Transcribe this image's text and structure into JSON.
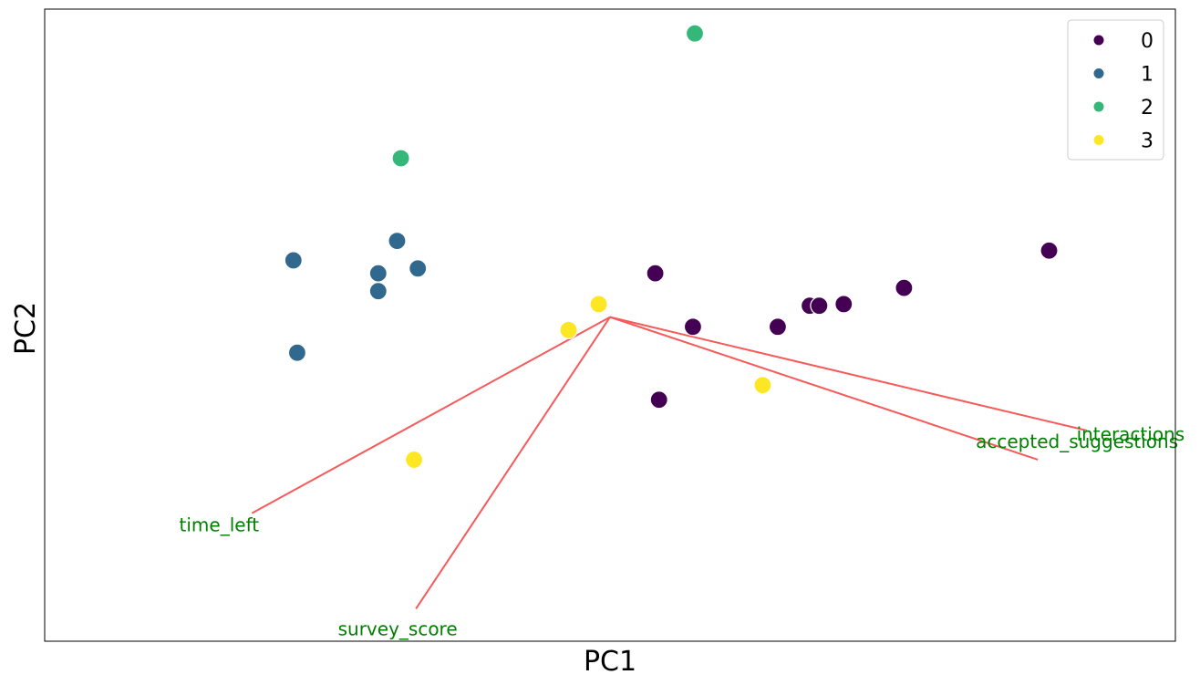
{
  "chart_data": {
    "type": "scatter",
    "xlabel": "PC1",
    "ylabel": "PC2",
    "xlim": [
      -3.0,
      3.0
    ],
    "ylim": [
      -2.0,
      1.9
    ],
    "legend_placement": "top-right",
    "grid": false,
    "series": [
      {
        "name": "0",
        "color": "#440154",
        "x": [
          0.24,
          0.44,
          0.89,
          1.06,
          1.11,
          1.24,
          1.56,
          2.33,
          0.26
        ],
        "y": [
          0.27,
          -0.06,
          -0.06,
          0.07,
          0.07,
          0.08,
          0.18,
          0.41,
          -0.51
        ]
      },
      {
        "name": "1",
        "color": "#31688e",
        "x": [
          -1.68,
          -1.23,
          -1.23,
          -1.13,
          -1.02,
          -1.66
        ],
        "y": [
          0.35,
          0.27,
          0.16,
          0.47,
          0.3,
          -0.22
        ]
      },
      {
        "name": "2",
        "color": "#35b779",
        "x": [
          -1.11,
          0.45
        ],
        "y": [
          0.98,
          1.75
        ]
      },
      {
        "name": "3",
        "color": "#fde725",
        "x": [
          -0.06,
          -0.22,
          0.81,
          -1.04
        ],
        "y": [
          0.08,
          -0.08,
          -0.42,
          -0.88
        ]
      }
    ],
    "loadings": [
      {
        "name": "time_left",
        "x": -1.9,
        "y": -1.21
      },
      {
        "name": "survey_score",
        "x": -1.03,
        "y": -1.8
      },
      {
        "name": "accepted_suggestions",
        "x": 2.27,
        "y": -0.88
      },
      {
        "name": "interactions",
        "x": 2.53,
        "y": -0.7
      }
    ],
    "loading_color": "#f65a5a",
    "loading_label_color": "#008000"
  }
}
